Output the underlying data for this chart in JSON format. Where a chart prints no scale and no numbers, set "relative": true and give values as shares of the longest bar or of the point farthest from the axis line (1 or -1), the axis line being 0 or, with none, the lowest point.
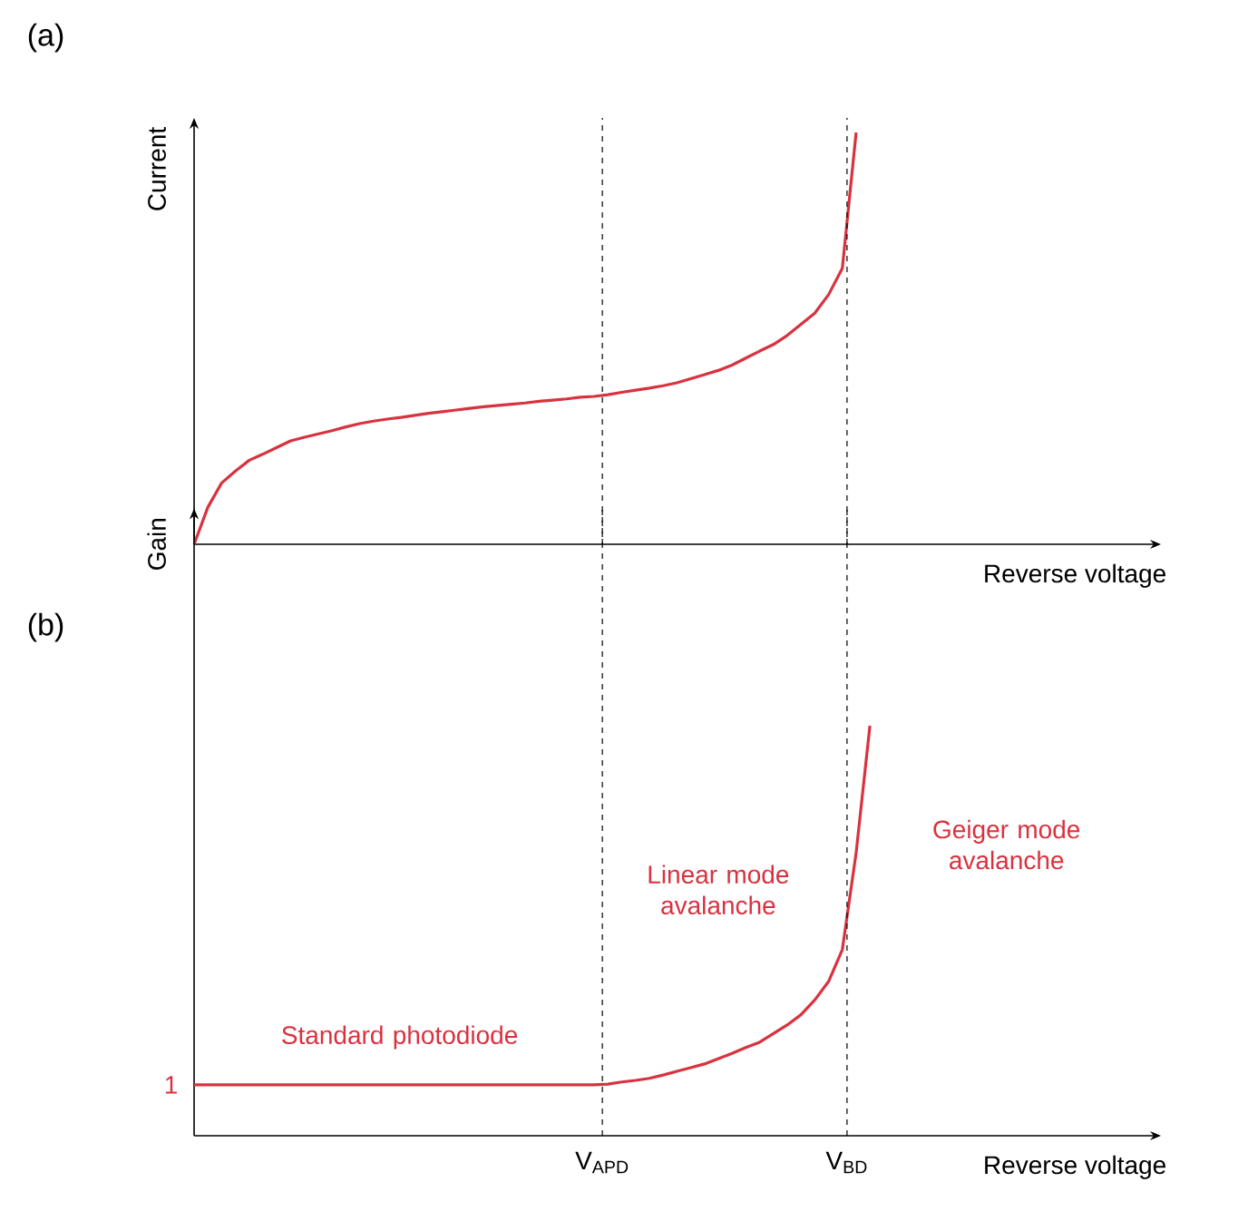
{
  "chart_data": [
    {
      "type": "line",
      "title": "(a)",
      "ylabel": "Current",
      "xlabel": "Reverse voltage",
      "relative": true,
      "line_style": "solid",
      "categories": [
        null,
        null,
        null,
        null,
        null,
        null,
        null,
        null,
        null,
        null,
        null,
        null,
        null,
        null,
        null,
        null,
        null,
        null,
        null,
        null,
        null,
        null,
        null,
        null,
        null,
        null,
        null,
        null,
        null,
        null,
        null,
        null,
        null,
        null,
        null,
        null,
        null,
        null,
        null,
        null,
        null,
        null,
        null,
        null,
        null,
        null,
        null,
        null,
        null
      ],
      "series": [
        {
          "color": "#d9323f",
          "values": [
            0,
            0.09,
            0.149,
            0.178,
            0.204,
            0.219,
            0.235,
            0.251,
            0.26,
            0.268,
            0.276,
            0.285,
            0.293,
            0.299,
            0.304,
            0.308,
            0.313,
            0.318,
            0.322,
            0.326,
            0.33,
            0.334,
            0.337,
            0.34,
            0.343,
            0.347,
            0.35,
            0.353,
            0.357,
            0.359,
            0.363,
            0.369,
            0.374,
            0.379,
            0.385,
            0.392,
            0.402,
            0.412,
            0.422,
            0.435,
            0.452,
            0.469,
            0.485,
            0.507,
            0.534,
            0.561,
            0.606,
            0.67,
            1.0
          ]
        }
      ]
    },
    {
      "type": "line",
      "title": "(b)",
      "ylabel": "Gain",
      "xlabel": "Reverse voltage",
      "relative": true,
      "line_style": "solid",
      "categories": [
        null,
        null,
        null,
        null,
        null,
        null,
        null,
        null,
        null,
        null,
        null,
        null,
        null,
        null,
        null,
        null,
        null,
        null,
        null,
        null,
        null,
        null,
        null,
        null,
        null,
        null,
        null,
        null,
        null,
        null,
        null,
        null,
        null,
        null,
        null,
        null,
        null,
        null,
        null,
        null,
        null,
        null,
        null,
        null,
        null,
        null,
        null,
        null,
        null,
        null
      ],
      "series": [
        {
          "color": "#d9323f",
          "values": [
            0.124,
            0.124,
            0.124,
            0.124,
            0.124,
            0.124,
            0.124,
            0.124,
            0.124,
            0.124,
            0.124,
            0.124,
            0.124,
            0.124,
            0.124,
            0.124,
            0.124,
            0.124,
            0.124,
            0.124,
            0.124,
            0.124,
            0.124,
            0.124,
            0.124,
            0.124,
            0.124,
            0.124,
            0.124,
            0.124,
            0.126,
            0.131,
            0.135,
            0.14,
            0.148,
            0.157,
            0.166,
            0.175,
            0.188,
            0.201,
            0.215,
            0.228,
            0.249,
            0.27,
            0.295,
            0.331,
            0.376,
            0.454,
            0.69,
            1.0
          ]
        }
      ],
      "annotations": [
        "1",
        "Standard photodiode",
        "Linear mode avalanche",
        "Geiger mode avalanche",
        "V$_{APD}$",
        "V$_{BD}$"
      ]
    }
  ]
}
